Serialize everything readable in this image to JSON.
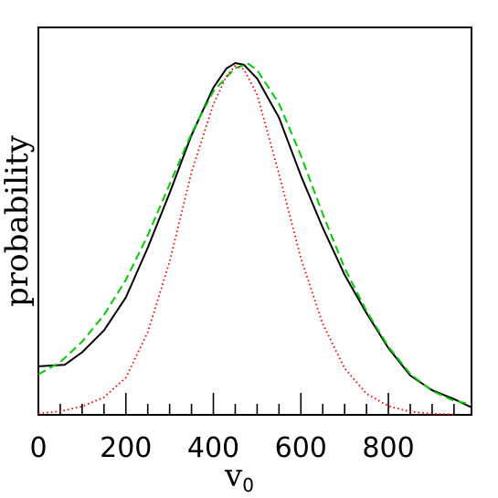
{
  "chart_data": {
    "type": "line",
    "xlabel": "v",
    "xlabel_subscript": "0",
    "ylabel": "probability",
    "xlim": [
      0,
      990
    ],
    "ylim": [
      0,
      1.0
    ],
    "x_ticks": [
      0,
      200,
      400,
      600,
      800
    ],
    "x_tick_labels": [
      "0",
      "200",
      "400",
      "600",
      "800"
    ],
    "series": [
      {
        "style": "solid",
        "color": "#000000",
        "x": [
          0,
          60,
          100,
          150,
          200,
          250,
          300,
          350,
          400,
          430,
          450,
          470,
          500,
          550,
          600,
          650,
          700,
          750,
          800,
          850,
          900,
          950,
          990
        ],
        "y": [
          0.138,
          0.142,
          0.178,
          0.24,
          0.334,
          0.475,
          0.63,
          0.795,
          0.93,
          0.985,
          1.0,
          0.995,
          0.956,
          0.845,
          0.68,
          0.532,
          0.398,
          0.289,
          0.19,
          0.112,
          0.07,
          0.045,
          0.021
        ]
      },
      {
        "style": "dashed",
        "color": "#00cc00",
        "x": [
          0,
          50,
          100,
          150,
          200,
          250,
          300,
          350,
          400,
          450,
          480,
          500,
          550,
          600,
          650,
          700,
          750,
          800,
          850,
          900,
          950,
          990
        ],
        "y": [
          0.115,
          0.15,
          0.208,
          0.284,
          0.384,
          0.51,
          0.655,
          0.8,
          0.92,
          0.986,
          0.998,
          0.98,
          0.885,
          0.737,
          0.571,
          0.417,
          0.295,
          0.194,
          0.116,
          0.068,
          0.04,
          0.03
        ]
      },
      {
        "style": "dotted",
        "color": "#ff0000",
        "x": [
          0,
          50,
          100,
          150,
          200,
          250,
          300,
          350,
          400,
          430,
          450,
          470,
          500,
          550,
          600,
          650,
          700,
          750,
          800,
          850,
          900,
          950
        ],
        "y": [
          0.004,
          0.01,
          0.024,
          0.05,
          0.106,
          0.235,
          0.435,
          0.69,
          0.883,
          0.963,
          0.992,
          0.982,
          0.91,
          0.685,
          0.445,
          0.259,
          0.132,
          0.06,
          0.025,
          0.009,
          0.003,
          0.001
        ]
      }
    ]
  }
}
